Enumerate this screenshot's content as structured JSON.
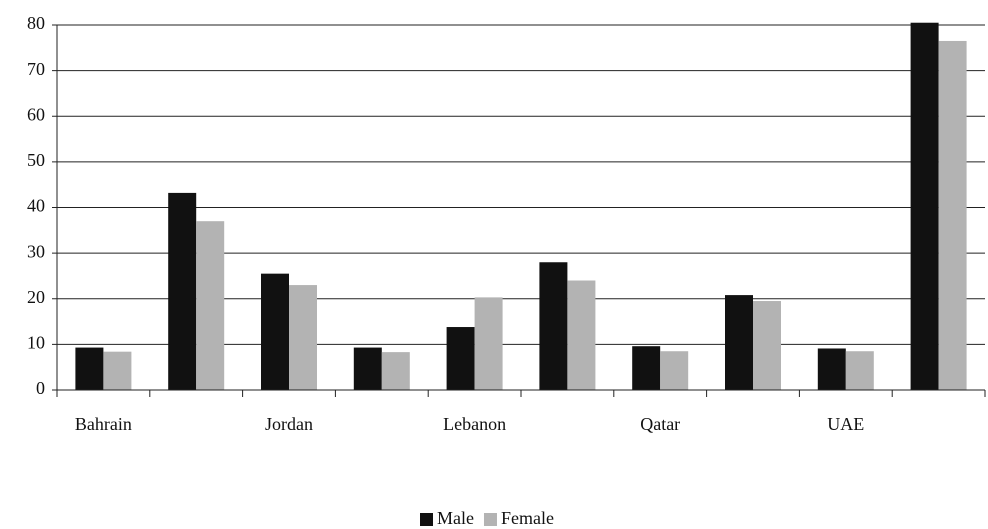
{
  "chart_data": {
    "type": "bar",
    "categories": [
      "Bahrain",
      null,
      "Jordan",
      null,
      "Lebanon",
      null,
      "Qatar",
      null,
      "UAE",
      null
    ],
    "series": [
      {
        "name": "Male",
        "color": "#111111",
        "values": [
          9.3,
          43.2,
          25.5,
          9.3,
          13.8,
          28,
          9.6,
          20.8,
          9.1,
          80.5
        ]
      },
      {
        "name": "Female",
        "color": "#b3b3b3",
        "values": [
          8.4,
          37,
          23,
          8.3,
          20.3,
          24,
          8.5,
          19.5,
          8.5,
          76.5
        ]
      }
    ],
    "ylim": [
      0,
      80
    ],
    "yticks": [
      0,
      10,
      20,
      30,
      40,
      50,
      60,
      70,
      80
    ],
    "grid": true,
    "legend": "bottom"
  }
}
